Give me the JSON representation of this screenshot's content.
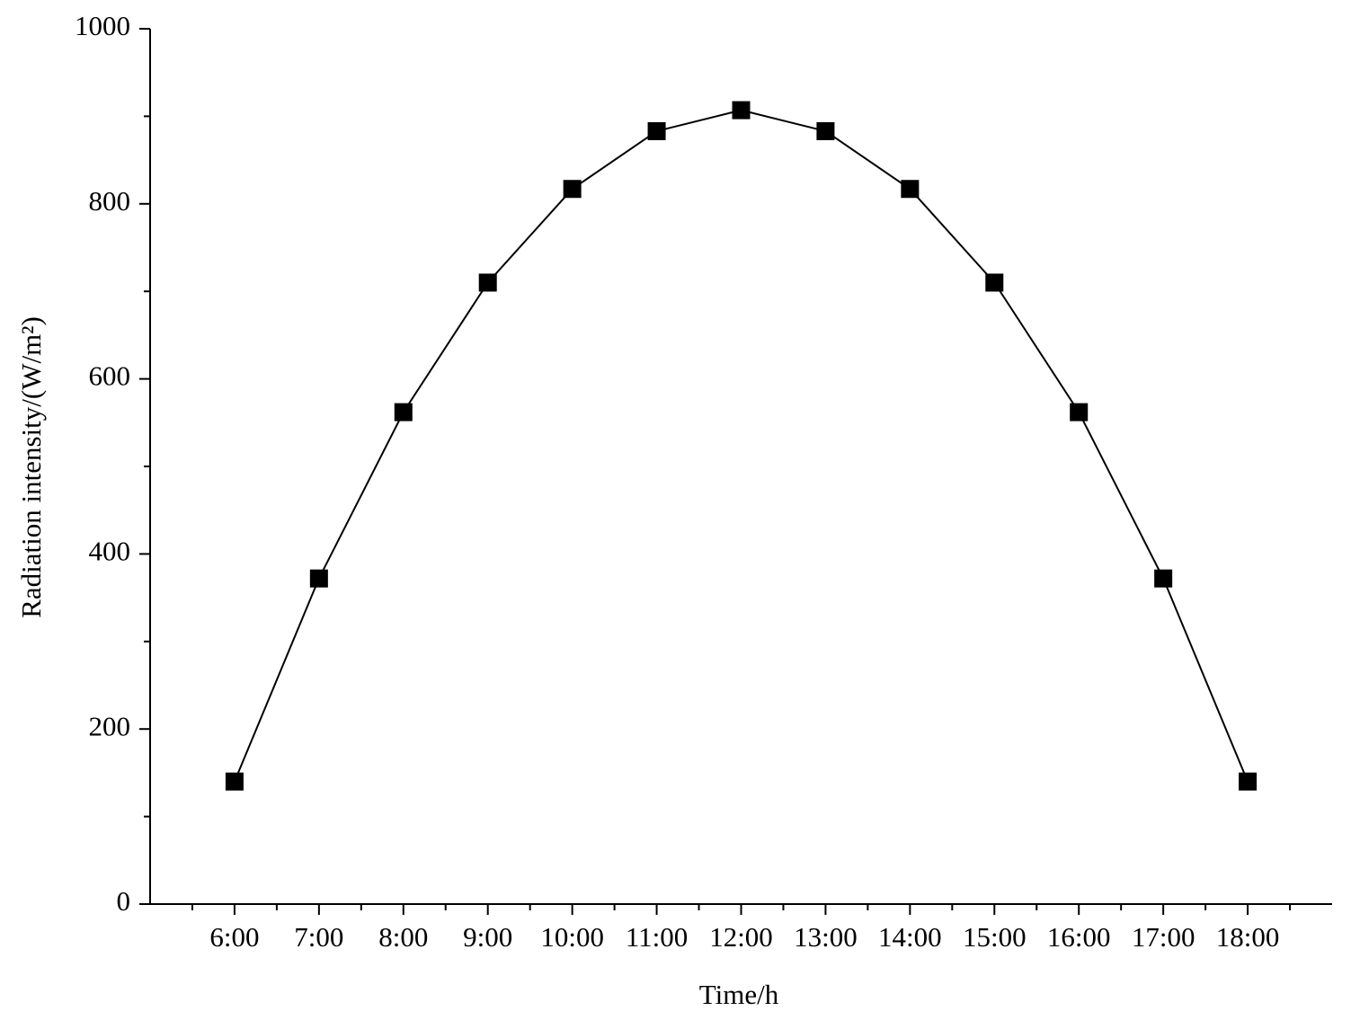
{
  "chart_data": {
    "type": "line",
    "x_label": "Time/h",
    "y_label": "Radiation intensity/(W/m²)",
    "categories": [
      "6:00",
      "7:00",
      "8:00",
      "9:00",
      "10:00",
      "11:00",
      "12:00",
      "13:00",
      "14:00",
      "15:00",
      "16:00",
      "17:00",
      "18:00"
    ],
    "series": [
      {
        "color": "#000000",
        "marker": "square",
        "values": [
          140,
          372,
          562,
          710,
          817,
          883,
          907,
          883,
          817,
          710,
          562,
          372,
          140
        ]
      }
    ],
    "ylim": [
      0,
      1000
    ],
    "yticks": [
      0,
      200,
      400,
      600,
      800,
      1000
    ],
    "yminorticks": [
      100,
      300,
      500,
      700,
      900
    ],
    "grid": false
  }
}
